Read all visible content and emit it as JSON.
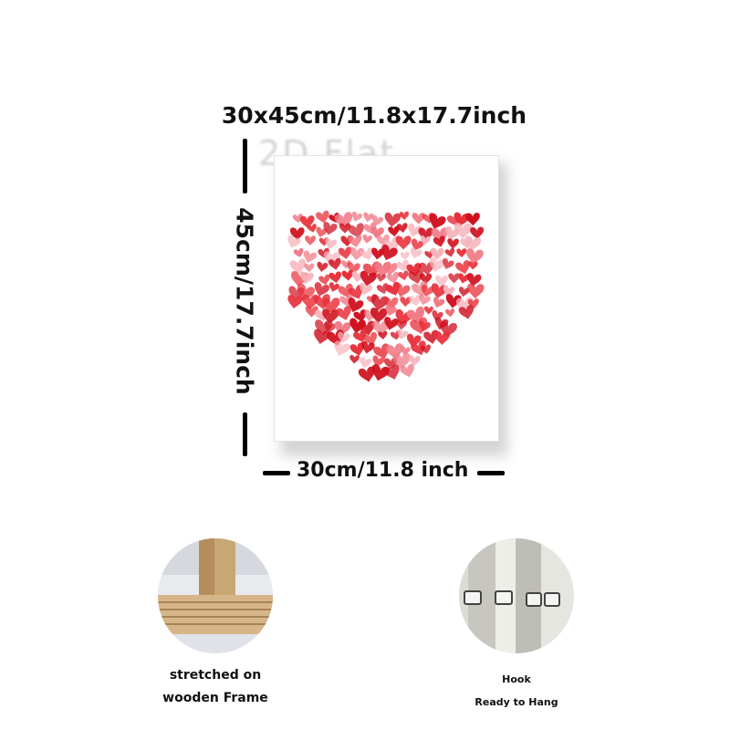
{
  "dimensions": {
    "title": "30x45cm/11.8x17.7inch",
    "height_label": "45cm/17.7inch",
    "width_label": "30cm/11.8 inch"
  },
  "watermark": "2D Flat",
  "features": [
    {
      "lines": [
        "stretched on",
        "wooden Frame"
      ],
      "icon": "wooden-frame-photo"
    },
    {
      "lines": [
        "Hook",
        "Ready to Hang"
      ],
      "icon": "hook-photo"
    }
  ],
  "colors": {
    "heart_dark": "#d0101e",
    "heart_mid": "#e8303a",
    "heart_light": "#f07a86",
    "heart_pale": "#f7b3bb"
  }
}
